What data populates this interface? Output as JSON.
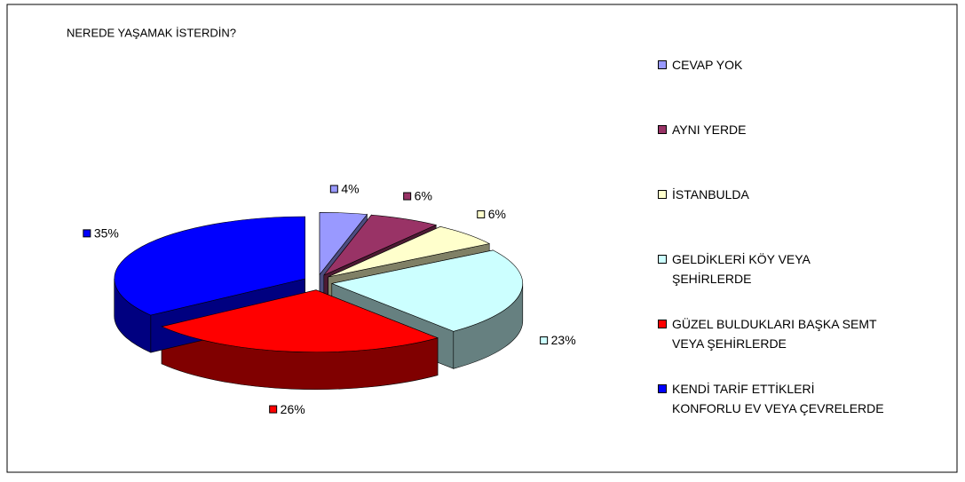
{
  "chart_data": {
    "type": "pie",
    "title": "NEREDE YAŞAMAK İSTERDİN?",
    "categories": [
      "CEVAP YOK",
      "AYNI YERDE",
      "İSTANBULDA",
      "GELDİKLERİ KÖY VEYA ŞEHİRLERDE",
      "GÜZEL BULDUKLARI BAŞKA SEMT VEYA ŞEHİRLERDE",
      "KENDİ TARİF ETTİKLERİ KONFORLU EV VEYA ÇEVRELERDE"
    ],
    "values": [
      4,
      6,
      6,
      23,
      26,
      35
    ],
    "value_labels": [
      "4%",
      "6%",
      "6%",
      "23%",
      "26%",
      "35%"
    ],
    "colors": [
      "#9999ff",
      "#993366",
      "#ffffcc",
      "#ccffff",
      "#ff0000",
      "#0000ff"
    ],
    "legend": "right"
  }
}
